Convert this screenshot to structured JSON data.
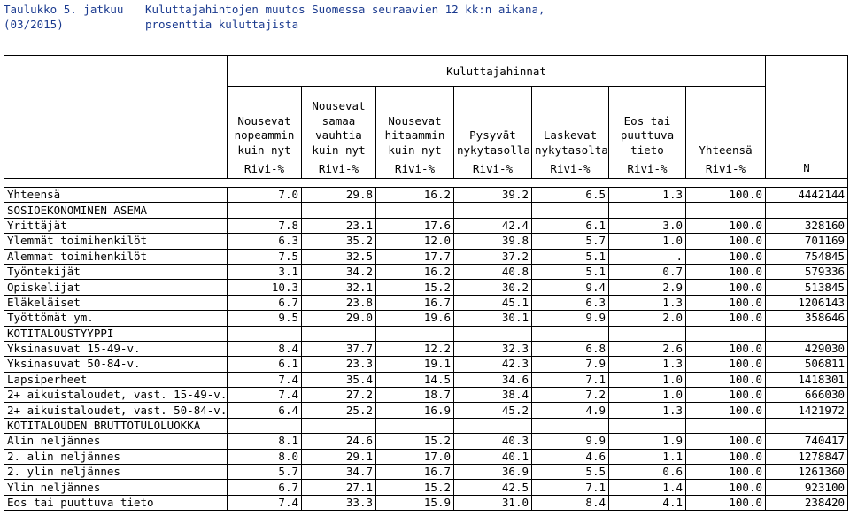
{
  "title": {
    "label_line1": "Taulukko 5. jatkuu",
    "label_line2": "(03/2015)",
    "text_line1": "Kuluttajahintojen muutos Suomessa seuraavien 12 kk:n aikana,",
    "text_line2": "prosenttia kuluttajista"
  },
  "table": {
    "group_header": "Kuluttajahinnat",
    "columns": [
      [
        "Nousevat",
        "nopeammin",
        "kuin nyt"
      ],
      [
        "Nousevat",
        "samaa",
        "vauhtia",
        "kuin nyt"
      ],
      [
        "Nousevat",
        "hitaammin",
        "kuin nyt"
      ],
      [
        "Pysyvät",
        "nykytasolla"
      ],
      [
        "Laskevat",
        "nykytasolta"
      ],
      [
        "Eos tai",
        "puuttuva",
        "tieto"
      ],
      [
        "Yhteensä"
      ]
    ],
    "units": [
      "Rivi-%",
      "Rivi-%",
      "Rivi-%",
      "Rivi-%",
      "Rivi-%",
      "Rivi-%",
      "Rivi-%",
      "N"
    ],
    "rows": [
      {
        "label": "Yhteensä",
        "values": [
          "7.0",
          "29.8",
          "16.2",
          "39.2",
          "6.5",
          "1.3",
          "100.0",
          "4442144"
        ]
      },
      {
        "label": "SOSIOEKONOMINEN ASEMA",
        "section": true,
        "values": []
      },
      {
        "label": "Yrittäjät",
        "values": [
          "7.8",
          "23.1",
          "17.6",
          "42.4",
          "6.1",
          "3.0",
          "100.0",
          "328160"
        ]
      },
      {
        "label": "Ylemmät toimihenkilöt",
        "values": [
          "6.3",
          "35.2",
          "12.0",
          "39.8",
          "5.7",
          "1.0",
          "100.0",
          "701169"
        ]
      },
      {
        "label": "Alemmat toimihenkilöt",
        "values": [
          "7.5",
          "32.5",
          "17.7",
          "37.2",
          "5.1",
          ".",
          "100.0",
          "754845"
        ]
      },
      {
        "label": "Työntekijät",
        "values": [
          "3.1",
          "34.2",
          "16.2",
          "40.8",
          "5.1",
          "0.7",
          "100.0",
          "579336"
        ]
      },
      {
        "label": "Opiskelijat",
        "values": [
          "10.3",
          "32.1",
          "15.2",
          "30.2",
          "9.4",
          "2.9",
          "100.0",
          "513845"
        ]
      },
      {
        "label": "Eläkeläiset",
        "values": [
          "6.7",
          "23.8",
          "16.7",
          "45.1",
          "6.3",
          "1.3",
          "100.0",
          "1206143"
        ]
      },
      {
        "label": "Työttömät ym.",
        "values": [
          "9.5",
          "29.0",
          "19.6",
          "30.1",
          "9.9",
          "2.0",
          "100.0",
          "358646"
        ]
      },
      {
        "label": "KOTITALOUSTYYPPI",
        "section": true,
        "values": []
      },
      {
        "label": "Yksinasuvat 15-49-v.",
        "values": [
          "8.4",
          "37.7",
          "12.2",
          "32.3",
          "6.8",
          "2.6",
          "100.0",
          "429030"
        ]
      },
      {
        "label": "Yksinasuvat 50-84-v.",
        "values": [
          "6.1",
          "23.3",
          "19.1",
          "42.3",
          "7.9",
          "1.3",
          "100.0",
          "506811"
        ]
      },
      {
        "label": "Lapsiperheet",
        "values": [
          "7.4",
          "35.4",
          "14.5",
          "34.6",
          "7.1",
          "1.0",
          "100.0",
          "1418301"
        ]
      },
      {
        "label": "2+ aikuistaloudet, vast. 15-49-v.",
        "values": [
          "7.4",
          "27.2",
          "18.7",
          "38.4",
          "7.2",
          "1.0",
          "100.0",
          "666030"
        ]
      },
      {
        "label": "2+ aikuistaloudet, vast. 50-84-v.",
        "values": [
          "6.4",
          "25.2",
          "16.9",
          "45.2",
          "4.9",
          "1.3",
          "100.0",
          "1421972"
        ]
      },
      {
        "label": "KOTITALOUDEN BRUTTOTULOLUOKKA",
        "section": true,
        "values": []
      },
      {
        "label": "Alin neljännes",
        "values": [
          "8.1",
          "24.6",
          "15.2",
          "40.3",
          "9.9",
          "1.9",
          "100.0",
          "740417"
        ]
      },
      {
        "label": "2. alin neljännes",
        "values": [
          "8.0",
          "29.1",
          "17.0",
          "40.1",
          "4.6",
          "1.1",
          "100.0",
          "1278847"
        ]
      },
      {
        "label": "2. ylin neljännes",
        "values": [
          "5.7",
          "34.7",
          "16.7",
          "36.9",
          "5.5",
          "0.6",
          "100.0",
          "1261360"
        ]
      },
      {
        "label": "Ylin neljännes",
        "values": [
          "6.7",
          "27.1",
          "15.2",
          "42.5",
          "7.1",
          "1.4",
          "100.0",
          "923100"
        ]
      },
      {
        "label": "Eos tai puuttuva tieto",
        "values": [
          "7.4",
          "33.3",
          "15.9",
          "31.0",
          "8.4",
          "4.1",
          "100.0",
          "238420"
        ]
      }
    ]
  }
}
